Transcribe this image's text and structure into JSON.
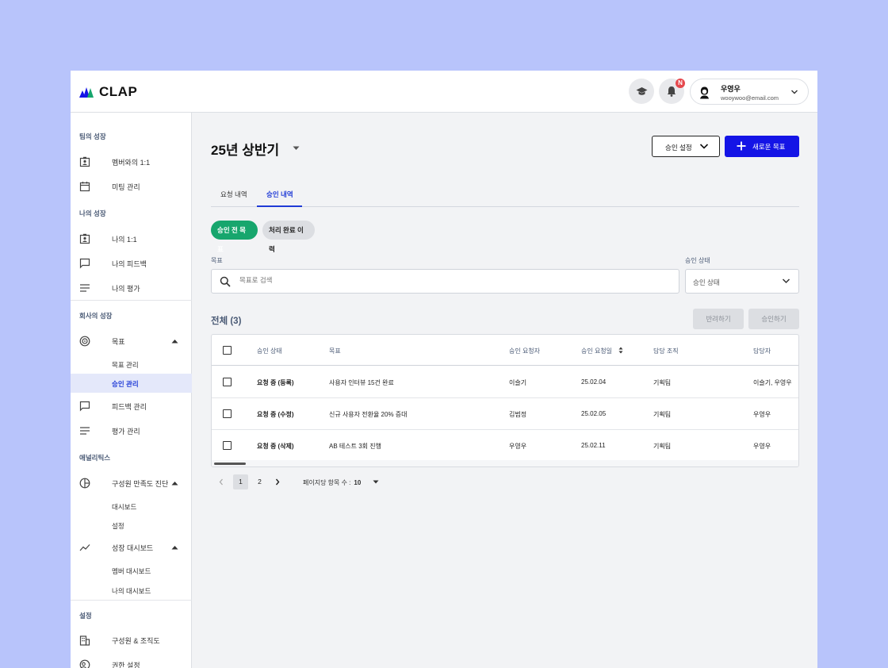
{
  "app": {
    "logo_text": "CLAP"
  },
  "header": {
    "user_name": "우영우",
    "user_email": "wooywoo@email.com",
    "notification_badge": "N"
  },
  "sidebar": {
    "sections": [
      {
        "title": "팀의 성장",
        "items": [
          {
            "label": "멤버와의 1:1",
            "icon": "badge-icon"
          },
          {
            "label": "미팅 관리",
            "icon": "calendar-icon"
          }
        ]
      },
      {
        "title": "나의 성장",
        "items": [
          {
            "label": "나의 1:1",
            "icon": "badge-icon"
          },
          {
            "label": "나의 피드백",
            "icon": "chat-icon"
          },
          {
            "label": "나의 평가",
            "icon": "lines-icon"
          }
        ]
      },
      {
        "title": "회사의 성장",
        "items": [
          {
            "label": "목표",
            "icon": "target-icon",
            "expanded": true,
            "children": [
              "목표 관리",
              "승인 관리"
            ]
          },
          {
            "label": "피드백 관리",
            "icon": "chat-icon"
          },
          {
            "label": "평가 관리",
            "icon": "lines-icon"
          }
        ]
      },
      {
        "title": "애널리틱스",
        "items": [
          {
            "label": "구성원 만족도 진단",
            "icon": "pie-icon",
            "expanded": true,
            "children": [
              "대시보드",
              "설정"
            ]
          },
          {
            "label": "성장 대시보드",
            "icon": "trend-icon",
            "expanded": true,
            "children": [
              "멤버 대시보드",
              "나의 대시보드"
            ]
          }
        ]
      },
      {
        "title": "설정",
        "items": [
          {
            "label": "구성원 & 조직도",
            "icon": "building-icon"
          },
          {
            "label": "권한 설정",
            "icon": "permission-icon"
          }
        ]
      }
    ],
    "active_item": "승인 관리"
  },
  "main": {
    "title": "25년 상반기",
    "approval_settings_label": "승인 설정",
    "new_goal_label": "새로운 목표",
    "tabs": [
      {
        "label": "요청 내역",
        "active": false
      },
      {
        "label": "승인 내역",
        "active": true
      }
    ],
    "chips": [
      {
        "label": "승인 전 목표",
        "active": true
      },
      {
        "label": "처리 완료 이력",
        "active": false
      }
    ],
    "filters": {
      "goal_label": "목표",
      "search_placeholder": "목표로 검색",
      "status_label": "승인 상태",
      "status_value": "승인 상태"
    },
    "total_label": "전체 (3)",
    "reject_label": "반려하기",
    "approve_label": "승인하기",
    "table": {
      "columns": [
        "승인 상태",
        "목표",
        "승인 요청자",
        "승인 요청일",
        "담당 조직",
        "담당자"
      ],
      "rows": [
        [
          "요청 중 (등록)",
          "사용자 인터뷰 15건 완료",
          "이슬기",
          "25.02.04",
          "기획팀",
          "이슬기, 우영우"
        ],
        [
          "요청 중 (수정)",
          "신규 사용자 전환율 20% 증대",
          "김범정",
          "25.02.05",
          "기획팀",
          "우영우"
        ],
        [
          "요청 중 (삭제)",
          "AB 테스트 3회 진행",
          "우영우",
          "25.02.11",
          "기획팀",
          "우영우"
        ]
      ]
    },
    "pagination": {
      "pages": [
        "1",
        "2"
      ],
      "current": "1",
      "per_page_label": "페이지당 항목 수 :",
      "per_page_value": "10"
    }
  },
  "colors": {
    "background": "#b8c4fb",
    "primary": "#1414e6",
    "success_chip": "#17a66d",
    "active_text": "#1f3ad6"
  }
}
